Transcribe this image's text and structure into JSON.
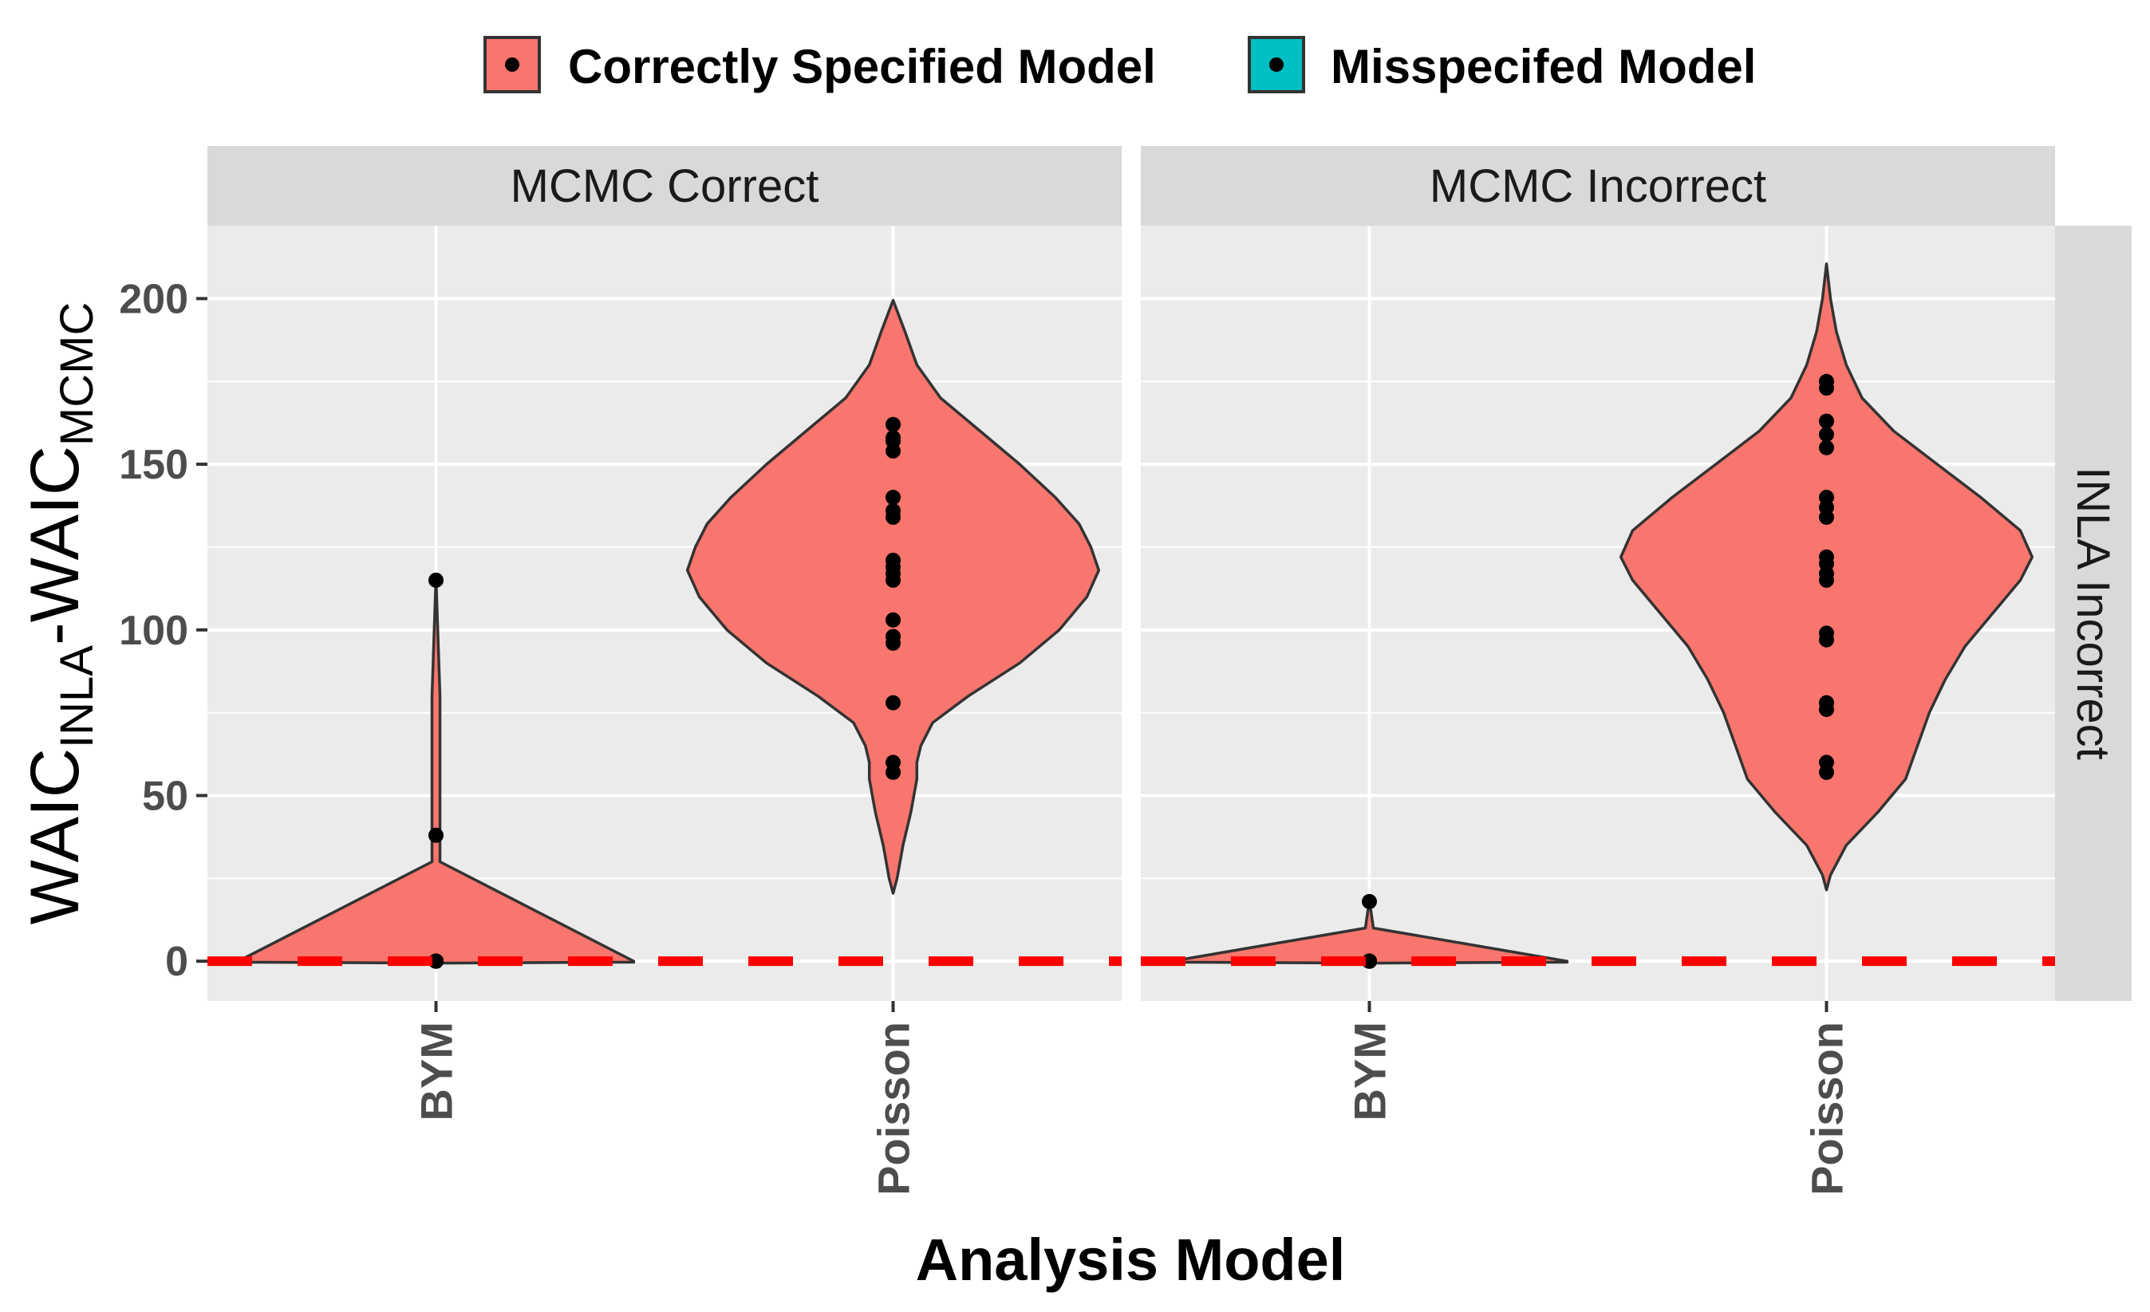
{
  "chart_data": {
    "type": "violin",
    "title": "",
    "xlabel": "Analysis Model",
    "ylabel": {
      "main": "WAIC",
      "sub1": "INLA",
      "sep": "-WAIC",
      "sub2": "MCMC"
    },
    "ylim": [
      -12,
      222
    ],
    "yticks": [
      0,
      50,
      100,
      150,
      200
    ],
    "categories": [
      "BYM",
      "Poisson"
    ],
    "reference_line": {
      "y": 0,
      "color": "#ff0000",
      "style": "dashed"
    },
    "legend": {
      "position": "top",
      "entries": [
        {
          "label": "Correctly Specified Model",
          "color": "#f8766d"
        },
        {
          "label": "Misspecifed Model",
          "color": "#00bfc4"
        }
      ]
    },
    "row_strip": "INLA Incorrect",
    "facets": [
      {
        "strip": "MCMC Correct",
        "violins": [
          {
            "category": "BYM",
            "color": "#f8766d",
            "profile": [
              [
                -0.6,
                0
              ],
              [
                -0.3,
                0.5
              ],
              [
                0,
                0.5
              ],
              [
                30,
                0.01
              ],
              [
                80,
                0.01
              ],
              [
                116,
                0
              ]
            ],
            "points": [
              0,
              0,
              0,
              0,
              0,
              0,
              0,
              0,
              38,
              115
            ]
          },
          {
            "category": "Poisson",
            "color": "#f8766d",
            "profile": [
              [
                20.5,
                0
              ],
              [
                25,
                0.01
              ],
              [
                35,
                0.025
              ],
              [
                45,
                0.045
              ],
              [
                55,
                0.06
              ],
              [
                60,
                0.06
              ],
              [
                65,
                0.07
              ],
              [
                72,
                0.1
              ],
              [
                80,
                0.19
              ],
              [
                90,
                0.32
              ],
              [
                100,
                0.42
              ],
              [
                110,
                0.49
              ],
              [
                118,
                0.52
              ],
              [
                125,
                0.5
              ],
              [
                132,
                0.47
              ],
              [
                140,
                0.41
              ],
              [
                150,
                0.32
              ],
              [
                160,
                0.22
              ],
              [
                170,
                0.12
              ],
              [
                180,
                0.06
              ],
              [
                190,
                0.03
              ],
              [
                199.5,
                0
              ]
            ],
            "points": [
              57,
              60,
              78,
              96,
              98,
              103,
              115,
              117,
              119,
              121,
              134,
              136,
              140,
              154,
              157,
              158,
              162
            ]
          }
        ]
      },
      {
        "strip": "MCMC Incorrect",
        "violins": [
          {
            "category": "BYM",
            "color": "#f8766d",
            "profile": [
              [
                -0.6,
                0
              ],
              [
                -0.3,
                0.5
              ],
              [
                0,
                0.5
              ],
              [
                10,
                0.01
              ],
              [
                18.5,
                0
              ]
            ],
            "points": [
              0,
              0,
              0,
              0,
              0,
              0,
              0,
              0,
              0,
              18
            ]
          },
          {
            "category": "Poisson",
            "color": "#f8766d",
            "profile": [
              [
                21.5,
                0
              ],
              [
                26,
                0.01
              ],
              [
                35,
                0.05
              ],
              [
                45,
                0.13
              ],
              [
                55,
                0.2
              ],
              [
                65,
                0.23
              ],
              [
                75,
                0.26
              ],
              [
                85,
                0.3
              ],
              [
                95,
                0.35
              ],
              [
                105,
                0.42
              ],
              [
                115,
                0.49
              ],
              [
                122,
                0.52
              ],
              [
                130,
                0.49
              ],
              [
                140,
                0.39
              ],
              [
                150,
                0.28
              ],
              [
                160,
                0.17
              ],
              [
                170,
                0.09
              ],
              [
                180,
                0.05
              ],
              [
                190,
                0.025
              ],
              [
                200,
                0.01
              ],
              [
                210.5,
                0
              ]
            ],
            "points": [
              57,
              60,
              76,
              78,
              97,
              99,
              115,
              117,
              120,
              122,
              134,
              137,
              140,
              155,
              159,
              163,
              173,
              175
            ]
          }
        ]
      }
    ]
  }
}
